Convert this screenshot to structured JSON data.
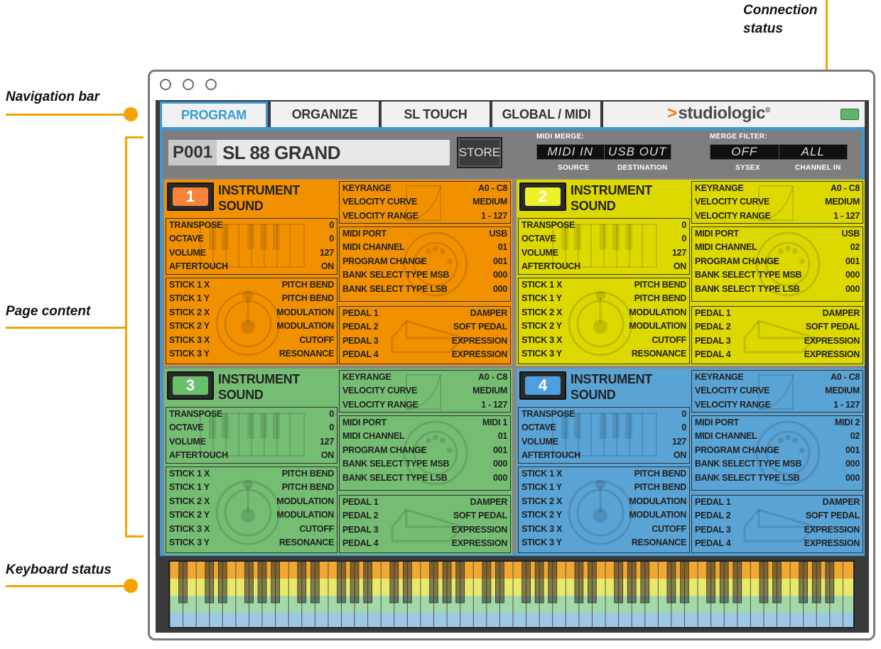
{
  "annotations": {
    "navigation_bar": "Navigation bar",
    "page_content": "Page content",
    "keyboard_status": "Keyboard status",
    "connection_status_1": "Connection",
    "connection_status_2": "status"
  },
  "nav": {
    "tabs": [
      "PROGRAM",
      "ORGANIZE",
      "SL TOUCH",
      "GLOBAL / MIDI"
    ],
    "active": "PROGRAM",
    "logo": "studiologic",
    "logo_mark": "®"
  },
  "program": {
    "number": "P001",
    "name": "SL 88 GRAND",
    "store_label": "STORE",
    "midi_merge_label": "MIDI MERGE:",
    "midi_merge_source": "MIDI IN",
    "midi_merge_destination": "USB OUT",
    "source_label": "SOURCE",
    "destination_label": "DESTINATION",
    "merge_filter_label": "MERGE FILTER:",
    "sysex_value": "OFF",
    "channel_in_value": "ALL",
    "sysex_label": "SYSEX",
    "channel_in_label": "CHANNEL IN"
  },
  "labels": {
    "instrument_1": "INSTRUMENT",
    "instrument_2": "SOUND",
    "keyrange": "KEYRANGE",
    "velocity_curve": "VELOCITY CURVE",
    "velocity_range": "VELOCITY RANGE",
    "transpose": "TRANSPOSE",
    "octave": "OCTAVE",
    "volume": "VOLUME",
    "aftertouch": "AFTERTOUCH",
    "midi_port": "MIDI PORT",
    "midi_channel": "MIDI CHANNEL",
    "program_change": "PROGRAM CHANGE",
    "bank_msb": "BANK SELECT TYPE MSB",
    "bank_lsb": "BANK SELECT TYPE LSB",
    "stick1x": "STICK 1 X",
    "stick1y": "STICK 1 Y",
    "stick2x": "STICK 2 X",
    "stick2y": "STICK 2 Y",
    "stick3x": "STICK 3 X",
    "stick3y": "STICK 3 Y",
    "pedal1": "PEDAL 1",
    "pedal2": "PEDAL 2",
    "pedal3": "PEDAL 3",
    "pedal4": "PEDAL 4"
  },
  "parts": [
    {
      "number": "1",
      "color": "#f29100",
      "badge": "#f5833a",
      "keyrange": "A0 - C8",
      "velocity_curve": "MEDIUM",
      "velocity_range": "1 - 127",
      "transpose": "0",
      "octave": "0",
      "volume": "127",
      "aftertouch": "ON",
      "midi_port": "USB",
      "midi_channel": "01",
      "program_change": "001",
      "bank_msb": "000",
      "bank_lsb": "000",
      "stick1x": "PITCH BEND",
      "stick1y": "PITCH BEND",
      "stick2x": "MODULATION",
      "stick2y": "MODULATION",
      "stick3x": "CUTOFF",
      "stick3y": "RESONANCE",
      "pedal1": "DAMPER",
      "pedal2": "SOFT PEDAL",
      "pedal3": "EXPRESSION",
      "pedal4": "EXPRESSION"
    },
    {
      "number": "2",
      "color": "#dcd800",
      "badge": "#eef02a",
      "keyrange": "A0 - C8",
      "velocity_curve": "MEDIUM",
      "velocity_range": "1 - 127",
      "transpose": "0",
      "octave": "0",
      "volume": "127",
      "aftertouch": "ON",
      "midi_port": "USB",
      "midi_channel": "02",
      "program_change": "001",
      "bank_msb": "000",
      "bank_lsb": "000",
      "stick1x": "PITCH BEND",
      "stick1y": "PITCH BEND",
      "stick2x": "MODULATION",
      "stick2y": "MODULATION",
      "stick3x": "CUTOFF",
      "stick3y": "RESONANCE",
      "pedal1": "DAMPER",
      "pedal2": "SOFT PEDAL",
      "pedal3": "EXPRESSION",
      "pedal4": "EXPRESSION"
    },
    {
      "number": "3",
      "color": "#75bd73",
      "badge": "#68c06a",
      "keyrange": "A0 - C8",
      "velocity_curve": "MEDIUM",
      "velocity_range": "1 - 127",
      "transpose": "0",
      "octave": "0",
      "volume": "127",
      "aftertouch": "ON",
      "midi_port": "MIDI 1",
      "midi_channel": "01",
      "program_change": "001",
      "bank_msb": "000",
      "bank_lsb": "000",
      "stick1x": "PITCH BEND",
      "stick1y": "PITCH BEND",
      "stick2x": "MODULATION",
      "stick2y": "MODULATION",
      "stick3x": "CUTOFF",
      "stick3y": "RESONANCE",
      "pedal1": "DAMPER",
      "pedal2": "SOFT PEDAL",
      "pedal3": "EXPRESSION",
      "pedal4": "EXPRESSION"
    },
    {
      "number": "4",
      "color": "#5aa3d5",
      "badge": "#4e9ee0",
      "keyrange": "A0 - C8",
      "velocity_curve": "MEDIUM",
      "velocity_range": "1 - 127",
      "transpose": "0",
      "octave": "0",
      "volume": "127",
      "aftertouch": "ON",
      "midi_port": "MIDI 2",
      "midi_channel": "02",
      "program_change": "001",
      "bank_msb": "000",
      "bank_lsb": "000",
      "stick1x": "PITCH BEND",
      "stick1y": "PITCH BEND",
      "stick2x": "MODULATION",
      "stick2y": "MODULATION",
      "stick3x": "CUTOFF",
      "stick3y": "RESONANCE",
      "pedal1": "DAMPER",
      "pedal2": "SOFT PEDAL",
      "pedal3": "EXPRESSION",
      "pedal4": "EXPRESSION"
    }
  ],
  "colors": {
    "accent": "#3a9ad9",
    "annotation": "#f5a300",
    "keyboard_bands": [
      "#f0a830",
      "#e8e86a",
      "#a4d8a8",
      "#9cc8e8"
    ]
  }
}
